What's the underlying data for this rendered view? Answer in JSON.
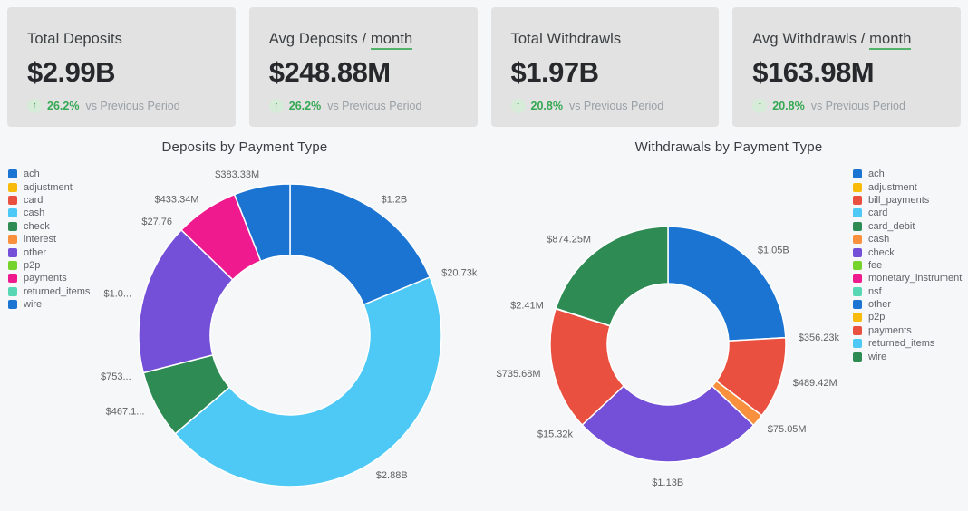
{
  "colors": {
    "page_bg": "#f6f7f9",
    "card_bg": "#e2e2e2",
    "accent_green": "#34a853",
    "underline_green": "#55b26a"
  },
  "icons": {
    "arrow_up": "↑"
  },
  "kpi_cards": [
    {
      "title_prefix": "Total Deposits",
      "title_suffix": "",
      "value": "$2.99B",
      "delta_pct": "26.2%",
      "delta_label": "vs Previous Period"
    },
    {
      "title_prefix": "Avg Deposits / ",
      "title_suffix": "month",
      "value": "$248.88M",
      "delta_pct": "26.2%",
      "delta_label": "vs Previous Period"
    },
    {
      "title_prefix": "Total Withdrawls",
      "title_suffix": "",
      "value": "$1.97B",
      "delta_pct": "20.8%",
      "delta_label": "vs Previous Period"
    },
    {
      "title_prefix": "Avg Withdrawls / ",
      "title_suffix": "month",
      "value": "$163.98M",
      "delta_pct": "20.8%",
      "delta_label": "vs Previous Period"
    }
  ],
  "chart_data": [
    {
      "type": "pie",
      "subtype": "donut",
      "title": "Deposits by Payment Type",
      "legend_position": "left",
      "value_unit": "USD",
      "segments": [
        {
          "name": "ach",
          "color": "#1b74d2",
          "value": 1200000000,
          "label": "$1.2B"
        },
        {
          "name": "adjustment",
          "color": "#f8ba0b",
          "value": 20730,
          "label": "$20.73k"
        },
        {
          "name": "card",
          "color": "#e9503f",
          "value": 0,
          "label": ""
        },
        {
          "name": "cash",
          "color": "#4ec9f5",
          "value": 2880000000,
          "label": "$2.88B"
        },
        {
          "name": "check",
          "color": "#2e8b54",
          "value": 467100000,
          "label": "$467.1..."
        },
        {
          "name": "interest",
          "color": "#f9903e",
          "value": 753,
          "label": "$753..."
        },
        {
          "name": "other",
          "color": "#7450d8",
          "value": 1040000000,
          "label": "$1.0..."
        },
        {
          "name": "p2p",
          "color": "#76d32c",
          "value": 27.76,
          "label": "$27.76"
        },
        {
          "name": "payments",
          "color": "#ef1a8e",
          "value": 433340000,
          "label": "$433.34M"
        },
        {
          "name": "returned_items",
          "color": "#58d7b4",
          "value": 0,
          "label": ""
        },
        {
          "name": "wire",
          "color": "#1b74d2",
          "value": 383330000,
          "label": "$383.33M"
        }
      ]
    },
    {
      "type": "pie",
      "subtype": "donut",
      "title": "Withdrawals by Payment Type",
      "legend_position": "right",
      "value_unit": "USD",
      "segments": [
        {
          "name": "ach",
          "color": "#1b74d2",
          "value": 1050000000,
          "label": "$1.05B"
        },
        {
          "name": "adjustment",
          "color": "#f8ba0b",
          "value": 356230,
          "label": "$356.23k"
        },
        {
          "name": "bill_payments",
          "color": "#e9503f",
          "value": 489420000,
          "label": "$489.42M"
        },
        {
          "name": "card",
          "color": "#4ec9f5",
          "value": 0,
          "label": ""
        },
        {
          "name": "card_debit",
          "color": "#2e8b54",
          "value": 0,
          "label": ""
        },
        {
          "name": "cash",
          "color": "#f9903e",
          "value": 75050000,
          "label": "$75.05M"
        },
        {
          "name": "check",
          "color": "#7450d8",
          "value": 1130000000,
          "label": "$1.13B"
        },
        {
          "name": "fee",
          "color": "#76d32c",
          "value": 0,
          "label": ""
        },
        {
          "name": "monetary_instrument",
          "color": "#ef1a8e",
          "value": 0,
          "label": ""
        },
        {
          "name": "nsf",
          "color": "#58d7b4",
          "value": 0,
          "label": ""
        },
        {
          "name": "other",
          "color": "#1b74d2",
          "value": 0,
          "label": ""
        },
        {
          "name": "p2p",
          "color": "#f8ba0b",
          "value": 15320,
          "label": "$15.32k"
        },
        {
          "name": "payments",
          "color": "#e9503f",
          "value": 735680000,
          "label": "$735.68M"
        },
        {
          "name": "returned_items",
          "color": "#4ec9f5",
          "value": 2410000,
          "label": "$2.41M"
        },
        {
          "name": "wire",
          "color": "#2e8b54",
          "value": 874250000,
          "label": "$874.25M"
        }
      ]
    }
  ]
}
